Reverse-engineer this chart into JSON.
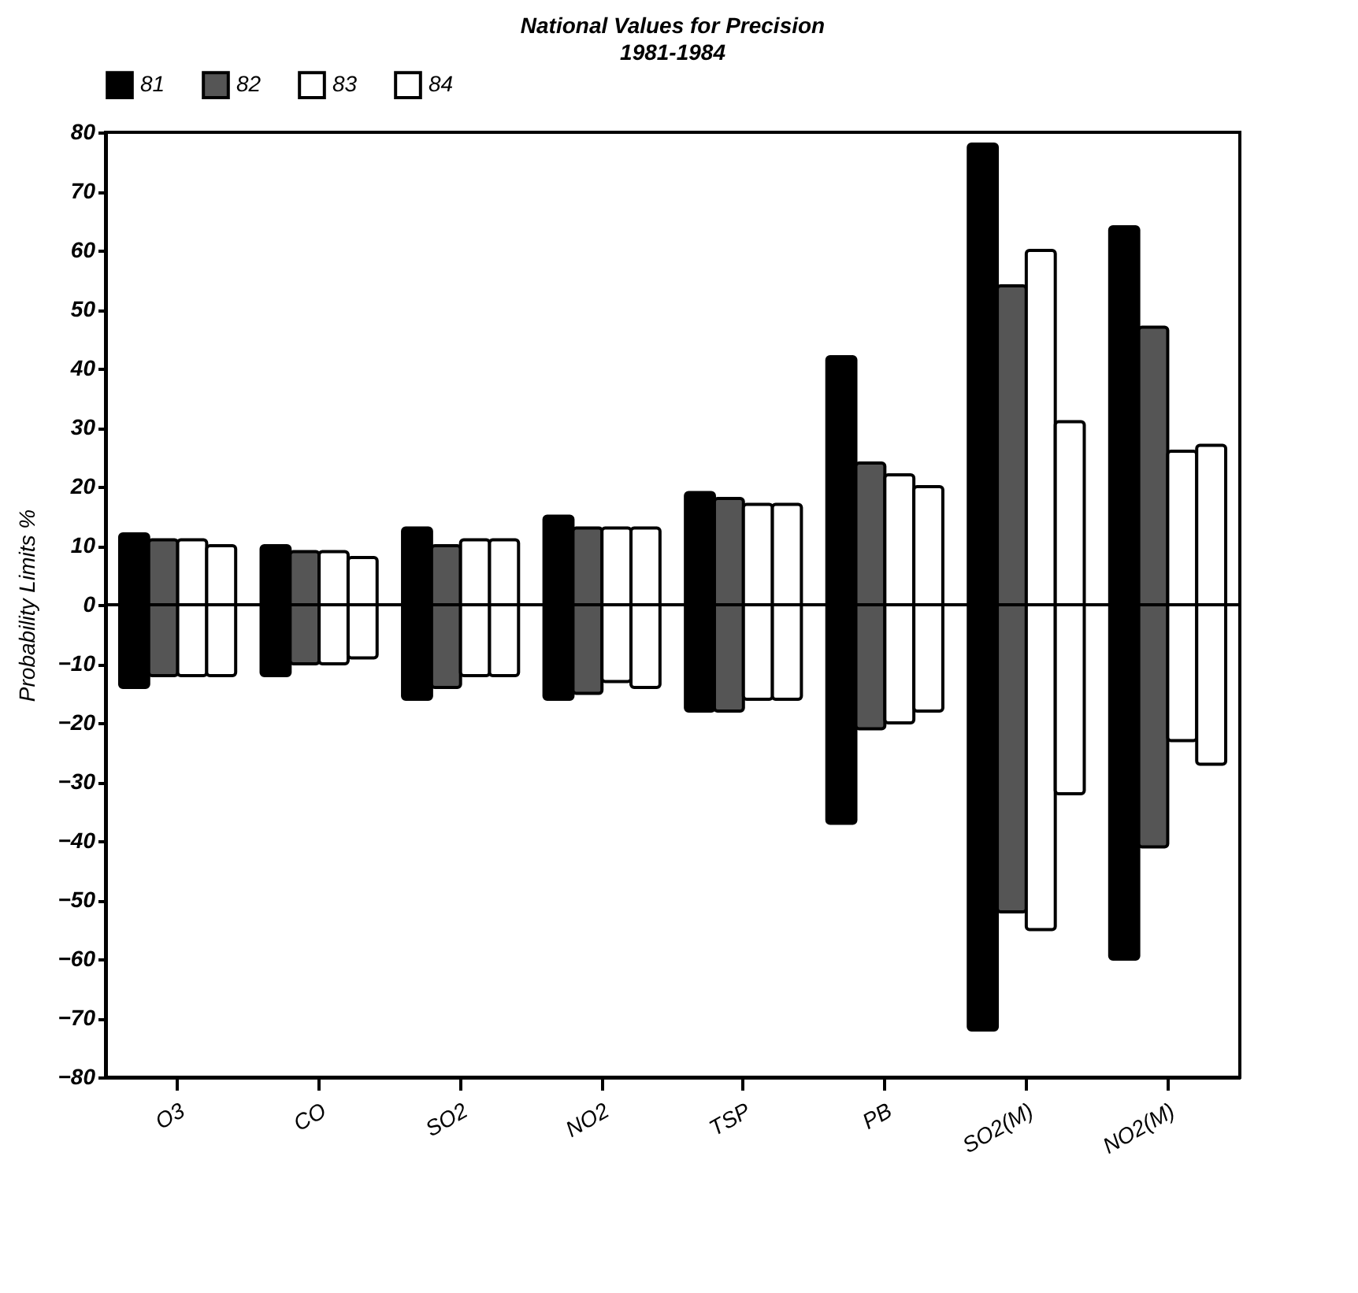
{
  "chart_data": {
    "type": "bar",
    "title": "National Values for Precision",
    "subtitle": "1981-1984",
    "ylabel": "Probability Limits %",
    "categories": [
      "O3",
      "CO",
      "SO2",
      "NO2",
      "TSP",
      "PB",
      "SO2(M)",
      "NO2(M)"
    ],
    "series": [
      {
        "name": "81",
        "color": "#000000",
        "base": [
          -14,
          -12,
          -16,
          -16,
          -18,
          -37,
          -72,
          -60
        ],
        "values": [
          26,
          22,
          29,
          31,
          37,
          79,
          150,
          124
        ]
      },
      {
        "name": "82",
        "color": "#555555",
        "base": [
          -12,
          -10,
          -14,
          -15,
          -18,
          -21,
          -52,
          -41
        ],
        "values": [
          23,
          19,
          24,
          28,
          36,
          45,
          106,
          88
        ]
      },
      {
        "name": "83",
        "color": "#ffffff",
        "base": [
          -12,
          -10,
          -12,
          -13,
          -16,
          -20,
          -55,
          -23
        ],
        "values": [
          23,
          19,
          23,
          26,
          33,
          42,
          115,
          49
        ]
      },
      {
        "name": "84",
        "color": "#ffffff",
        "base": [
          -12,
          -9,
          -12,
          -14,
          -16,
          -18,
          -32,
          -27
        ],
        "values": [
          22,
          17,
          23,
          27,
          33,
          38,
          63,
          54
        ]
      }
    ],
    "ylim": [
      -80,
      80
    ],
    "yticks": [
      -80,
      -70,
      -60,
      -50,
      -40,
      -30,
      -20,
      -10,
      0,
      10,
      20,
      30,
      40,
      50,
      60,
      70,
      80
    ],
    "ref_lines": [
      {
        "axis": "y",
        "value": 0,
        "color": "#000000"
      }
    ],
    "grid": false,
    "legend": "top"
  }
}
